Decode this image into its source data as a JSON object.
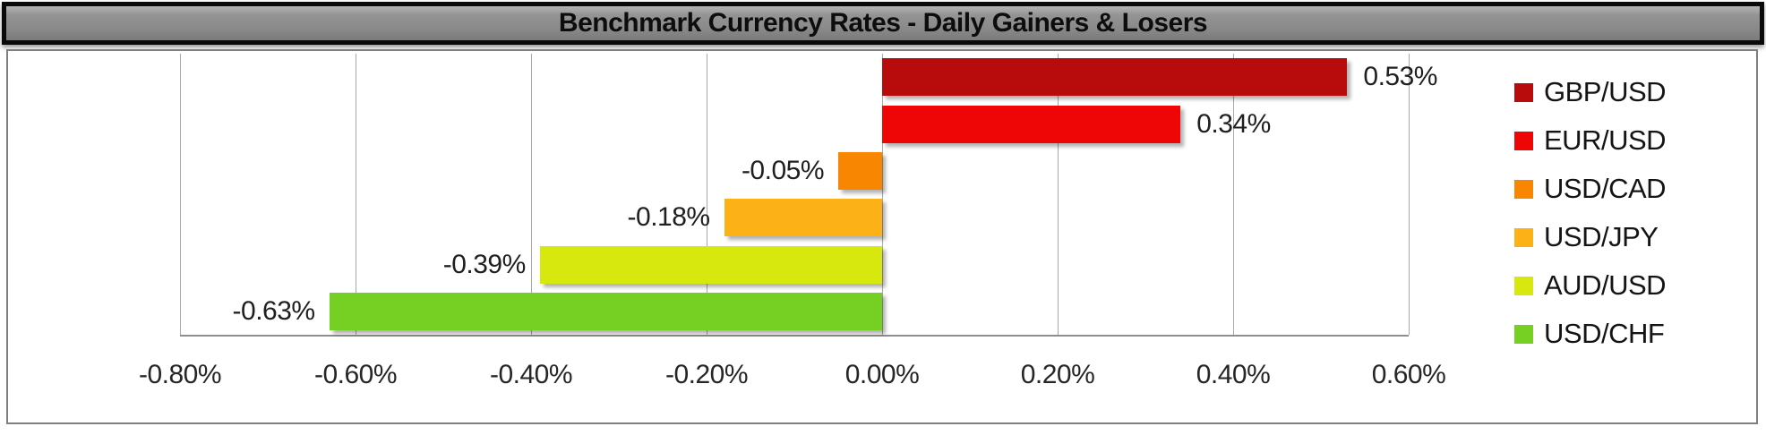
{
  "header": {
    "title": "Benchmark Currency Rates - Daily Gainers & Losers"
  },
  "chart_data": {
    "type": "bar",
    "orientation": "horizontal",
    "title": "Benchmark Currency Rates - Daily Gainers & Losers",
    "categories": [
      "GBP/USD",
      "EUR/USD",
      "USD/CAD",
      "USD/JPY",
      "AUD/USD",
      "USD/CHF"
    ],
    "series": [
      {
        "name": "GBP/USD",
        "value": 0.53,
        "label": "0.53%",
        "color": "#b80b0b"
      },
      {
        "name": "EUR/USD",
        "value": 0.34,
        "label": "0.34%",
        "color": "#ee0606"
      },
      {
        "name": "USD/CAD",
        "value": -0.05,
        "label": "-0.05%",
        "color": "#f88600"
      },
      {
        "name": "USD/JPY",
        "value": -0.18,
        "label": "-0.18%",
        "color": "#fcb216"
      },
      {
        "name": "AUD/USD",
        "value": -0.39,
        "label": "-0.39%",
        "color": "#d6e80e"
      },
      {
        "name": "USD/CHF",
        "value": -0.63,
        "label": "-0.63%",
        "color": "#76d023"
      }
    ],
    "xlabel": "",
    "ylabel": "",
    "xlim": [
      -0.8,
      0.6
    ],
    "x_ticks": [
      {
        "value": -0.8,
        "label": "-0.80%"
      },
      {
        "value": -0.6,
        "label": "-0.60%"
      },
      {
        "value": -0.4,
        "label": "-0.40%"
      },
      {
        "value": -0.2,
        "label": "-0.20%"
      },
      {
        "value": 0.0,
        "label": "0.00%"
      },
      {
        "value": 0.2,
        "label": "0.20%"
      },
      {
        "value": 0.4,
        "label": "0.40%"
      },
      {
        "value": 0.6,
        "label": "0.60%"
      }
    ],
    "grid": "vertical",
    "legend_position": "right",
    "value_format": "percent"
  },
  "style": {
    "banner_fill": "#8a8a8a",
    "banner_border": "#0a0a0a",
    "gridline_color": "#a9a9a9",
    "axis_text_color": "#262626"
  }
}
